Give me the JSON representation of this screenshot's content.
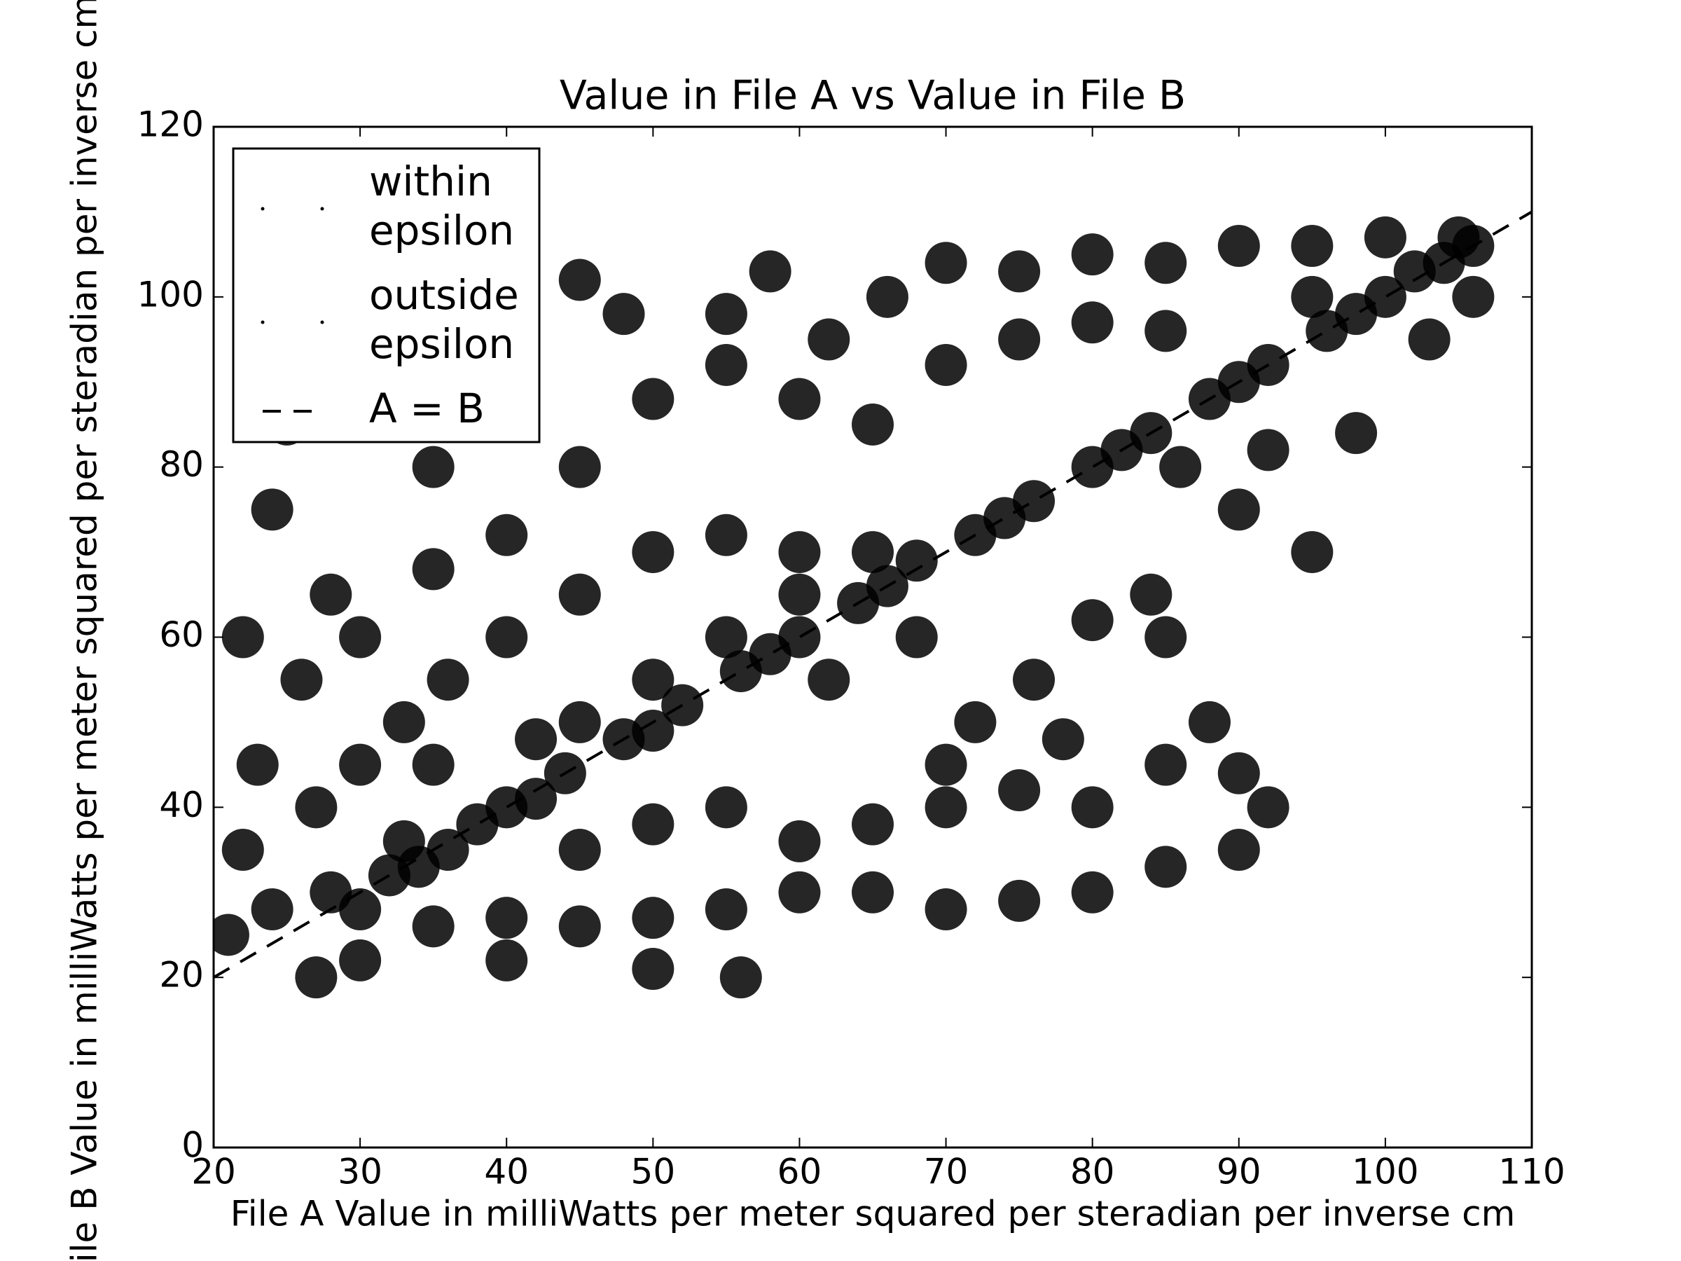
{
  "chart_data": {
    "type": "scatter",
    "title": "Value in File A vs Value in File B",
    "x_label": "File A Value in milliWatts per meter squared per steradian per inverse cm",
    "y_label": "File B Value in milliWatts per meter squared per steradian per inverse cm",
    "xlim": [
      20,
      110
    ],
    "ylim": [
      0,
      120
    ],
    "xticks": [
      20,
      30,
      40,
      50,
      60,
      70,
      80,
      90,
      100,
      110
    ],
    "yticks": [
      0,
      20,
      40,
      60,
      80,
      100,
      120
    ],
    "legend": "upper left",
    "series": [
      {
        "name": "within\nepsilon",
        "color": "#000000",
        "x": [
          28,
          32,
          36,
          40,
          44,
          48,
          52,
          56,
          60,
          64,
          68,
          72,
          76,
          80,
          84,
          88,
          92,
          96,
          100,
          104,
          106,
          34,
          42,
          50,
          58,
          66,
          74,
          82,
          90,
          98,
          102
        ],
        "y": [
          30,
          32,
          35,
          40,
          44,
          48,
          52,
          56,
          60,
          64,
          69,
          72,
          76,
          80,
          84,
          88,
          92,
          96,
          100,
          104,
          106,
          33,
          41,
          49,
          58,
          66,
          74,
          82,
          90,
          98,
          103
        ]
      },
      {
        "name": "outside\nepsilon",
        "color": "#000000",
        "x": [
          30,
          35,
          40,
          45,
          50,
          55,
          60,
          65,
          70,
          75,
          80,
          85,
          90,
          33,
          38,
          45,
          50,
          55,
          60,
          65,
          70,
          75,
          80,
          85,
          90,
          40,
          50,
          56,
          30,
          27,
          30,
          33,
          36,
          40,
          45,
          50,
          55,
          60,
          35,
          40,
          30,
          45,
          50,
          55,
          60,
          65,
          35,
          42,
          62,
          68,
          72,
          76,
          80,
          85,
          88,
          70,
          78,
          84,
          92,
          95,
          90,
          86,
          92,
          98,
          48,
          55,
          45,
          58,
          62,
          66,
          70,
          75,
          80,
          85,
          90,
          95,
          100,
          105,
          70,
          75,
          80,
          85,
          95,
          103,
          106,
          50,
          55,
          60,
          65,
          40,
          35,
          45,
          21,
          22,
          23,
          22,
          24,
          25,
          26,
          28,
          24,
          27
        ],
        "y": [
          28,
          26,
          27,
          26,
          27,
          28,
          30,
          30,
          28,
          29,
          30,
          33,
          35,
          36,
          38,
          35,
          38,
          40,
          36,
          38,
          40,
          42,
          40,
          45,
          44,
          22,
          21,
          20,
          22,
          20,
          45,
          50,
          55,
          60,
          65,
          70,
          72,
          70,
          68,
          72,
          60,
          50,
          55,
          60,
          65,
          70,
          45,
          48,
          55,
          60,
          50,
          55,
          62,
          60,
          50,
          45,
          48,
          65,
          40,
          70,
          75,
          80,
          82,
          84,
          98,
          98,
          102,
          103,
          95,
          100,
          104,
          103,
          105,
          104,
          106,
          106,
          107,
          107,
          92,
          95,
          97,
          96,
          100,
          95,
          100,
          88,
          92,
          88,
          85,
          90,
          80,
          80,
          25,
          35,
          45,
          60,
          75,
          85,
          55,
          65,
          28,
          40
        ]
      },
      {
        "name": "A = B",
        "color": "#000000",
        "line": "dashed",
        "x": [
          20,
          110
        ],
        "y": [
          20,
          110
        ]
      }
    ]
  }
}
